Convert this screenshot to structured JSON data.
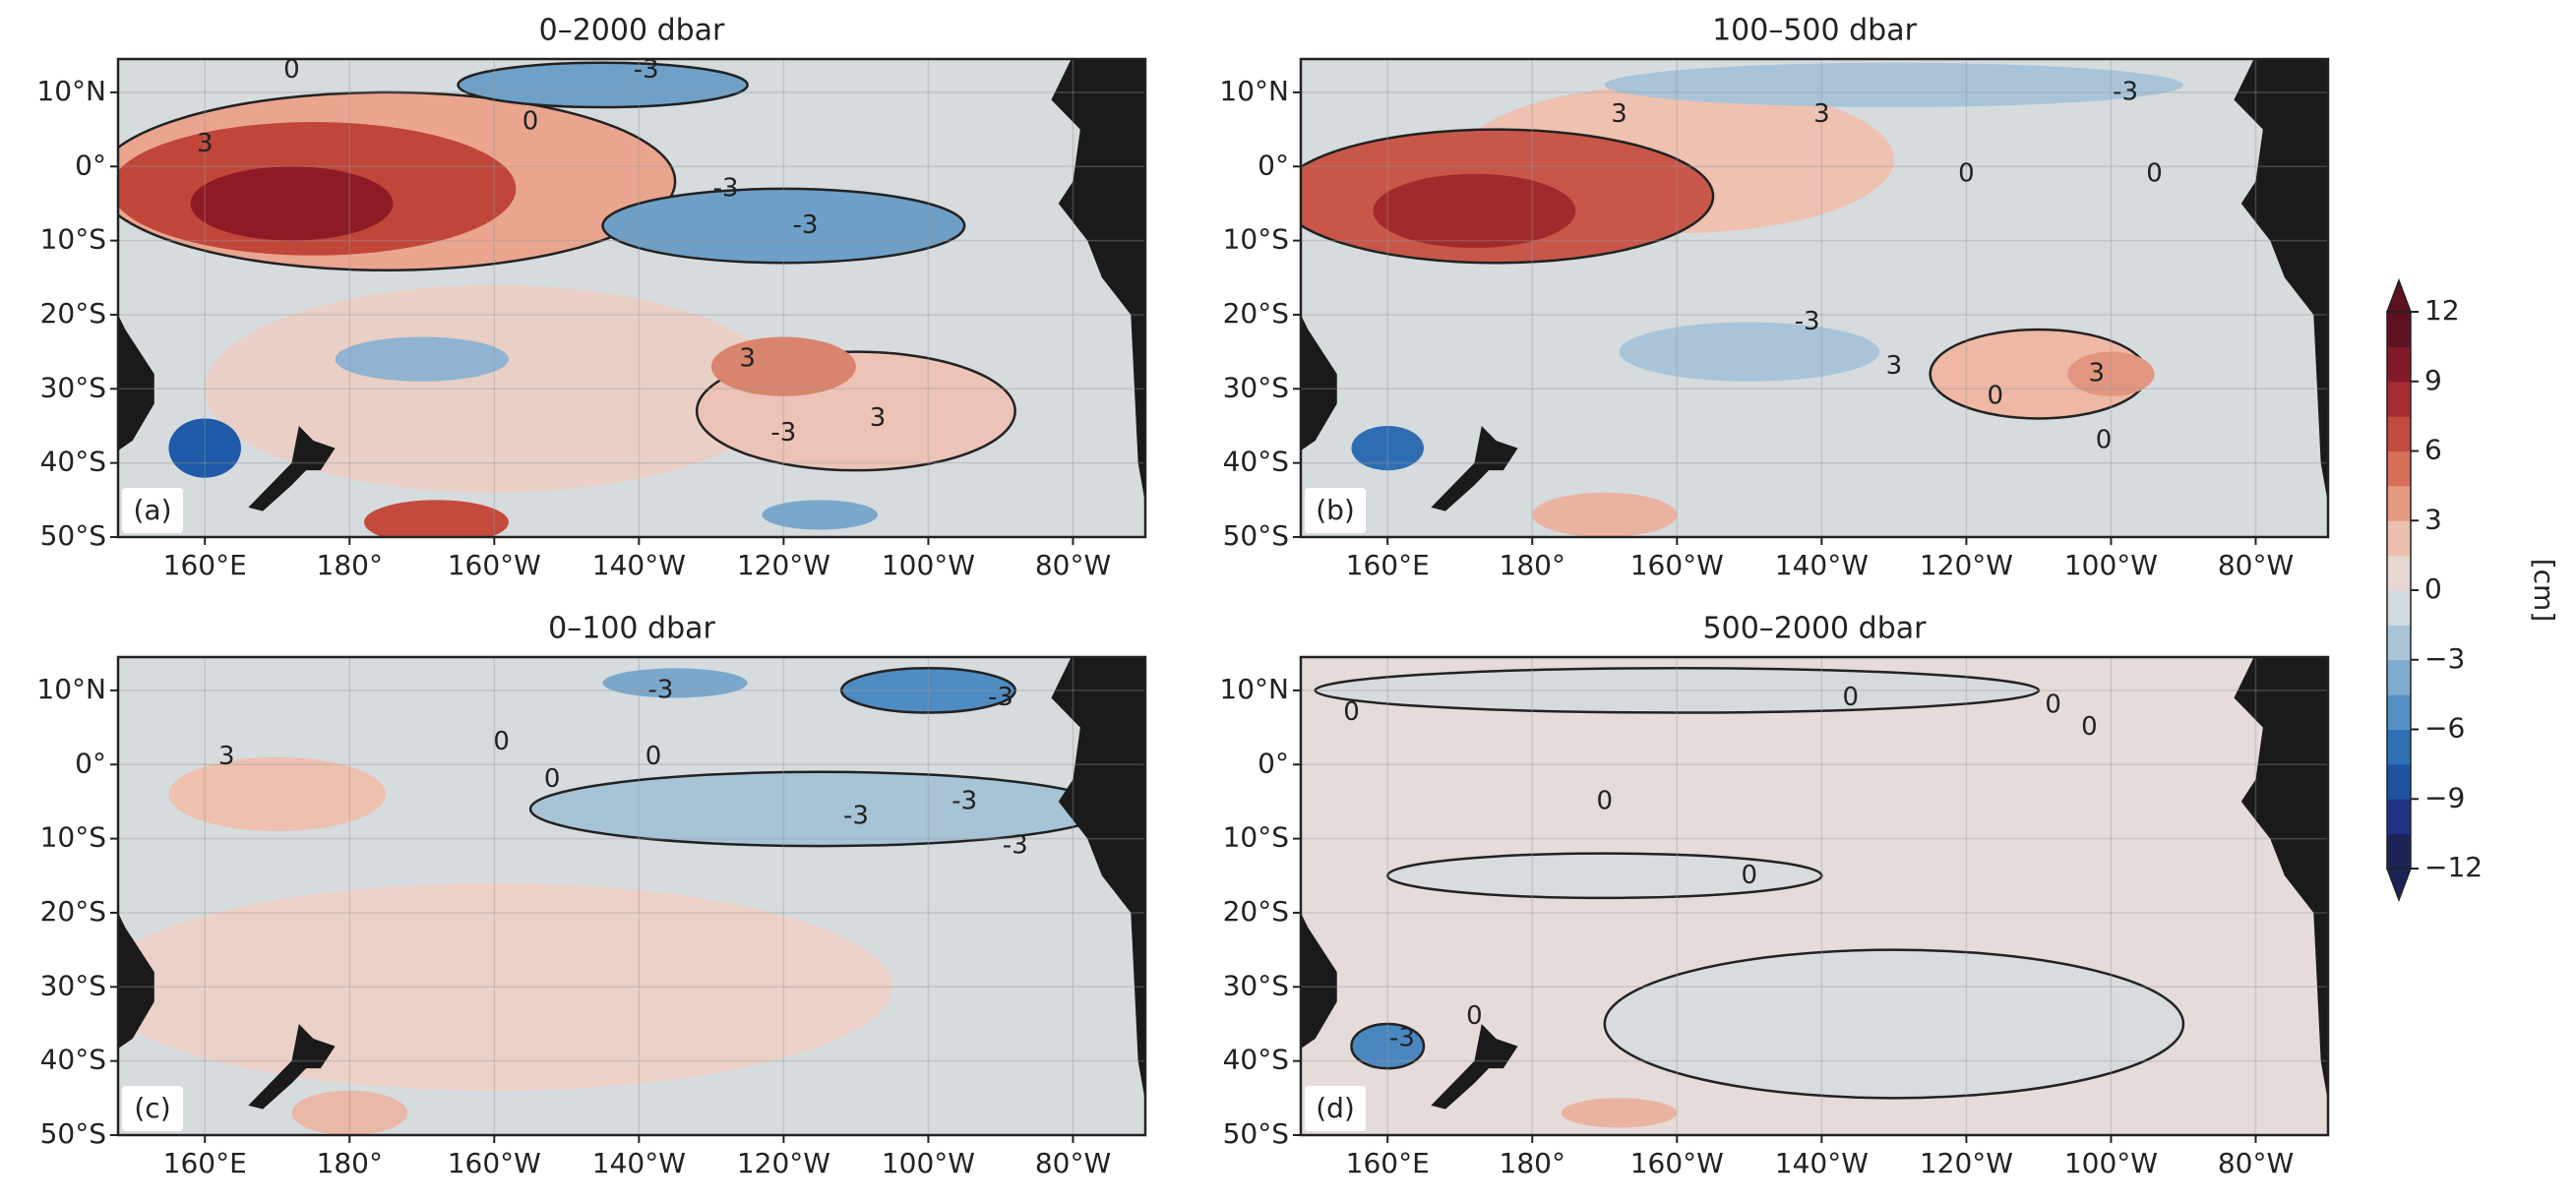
{
  "chart_data": [
    {
      "type": "map",
      "title": "0–2000 dbar",
      "panel_label": "(a)",
      "xlim": [
        148,
        290
      ],
      "ylim": [
        -50,
        14.5
      ],
      "xticks": [
        {
          "value": 160,
          "label": "160°E"
        },
        {
          "value": 180,
          "label": "180°"
        },
        {
          "value": 200,
          "label": "160°W"
        },
        {
          "value": 220,
          "label": "140°W"
        },
        {
          "value": 240,
          "label": "120°W"
        },
        {
          "value": 260,
          "label": "100°W"
        },
        {
          "value": 280,
          "label": "80°W"
        }
      ],
      "yticks": [
        {
          "value": 10,
          "label": "10°N"
        },
        {
          "value": 0,
          "label": "0°"
        },
        {
          "value": -10,
          "label": "10°S"
        },
        {
          "value": -20,
          "label": "20°S"
        },
        {
          "value": -30,
          "label": "30°S"
        },
        {
          "value": -40,
          "label": "40°S"
        },
        {
          "value": -50,
          "label": "50°S"
        }
      ],
      "contour_labels": [
        "0",
        "-3",
        "3",
        "0",
        "-3",
        "-3",
        "3",
        "-3",
        "3"
      ]
    },
    {
      "type": "map",
      "title": "100–500 dbar",
      "panel_label": "(b)",
      "xlim": [
        148,
        290
      ],
      "ylim": [
        -50,
        14.5
      ],
      "xticks": [
        {
          "value": 160,
          "label": "160°E"
        },
        {
          "value": 180,
          "label": "180°"
        },
        {
          "value": 200,
          "label": "160°W"
        },
        {
          "value": 220,
          "label": "140°W"
        },
        {
          "value": 240,
          "label": "120°W"
        },
        {
          "value": 260,
          "label": "100°W"
        },
        {
          "value": 280,
          "label": "80°W"
        }
      ],
      "yticks": [
        {
          "value": 10,
          "label": "10°N"
        },
        {
          "value": 0,
          "label": "0°"
        },
        {
          "value": -10,
          "label": "10°S"
        },
        {
          "value": -20,
          "label": "20°S"
        },
        {
          "value": -30,
          "label": "30°S"
        },
        {
          "value": -40,
          "label": "40°S"
        },
        {
          "value": -50,
          "label": "50°S"
        }
      ],
      "contour_labels": [
        "3",
        "3",
        "-3",
        "0",
        "0",
        "-3",
        "3",
        "0",
        "3",
        "0"
      ]
    },
    {
      "type": "map",
      "title": "0–100 dbar",
      "panel_label": "(c)",
      "xlim": [
        148,
        290
      ],
      "ylim": [
        -50,
        14.5
      ],
      "xticks": [
        {
          "value": 160,
          "label": "160°E"
        },
        {
          "value": 180,
          "label": "180°"
        },
        {
          "value": 200,
          "label": "160°W"
        },
        {
          "value": 220,
          "label": "140°W"
        },
        {
          "value": 240,
          "label": "120°W"
        },
        {
          "value": 260,
          "label": "100°W"
        },
        {
          "value": 280,
          "label": "80°W"
        }
      ],
      "yticks": [
        {
          "value": 10,
          "label": "10°N"
        },
        {
          "value": 0,
          "label": "0°"
        },
        {
          "value": -10,
          "label": "10°S"
        },
        {
          "value": -20,
          "label": "20°S"
        },
        {
          "value": -30,
          "label": "30°S"
        },
        {
          "value": -40,
          "label": "40°S"
        },
        {
          "value": -50,
          "label": "50°S"
        }
      ],
      "contour_labels": [
        "-3",
        "0",
        "-3",
        "3",
        "0",
        "0",
        "-3",
        "-3",
        "-3"
      ]
    },
    {
      "type": "map",
      "title": "500–2000 dbar",
      "panel_label": "(d)",
      "xlim": [
        148,
        290
      ],
      "ylim": [
        -50,
        14.5
      ],
      "xticks": [
        {
          "value": 160,
          "label": "160°E"
        },
        {
          "value": 180,
          "label": "180°"
        },
        {
          "value": 200,
          "label": "160°W"
        },
        {
          "value": 220,
          "label": "140°W"
        },
        {
          "value": 240,
          "label": "120°W"
        },
        {
          "value": 260,
          "label": "100°W"
        },
        {
          "value": 280,
          "label": "80°W"
        }
      ],
      "yticks": [
        {
          "value": 10,
          "label": "10°N"
        },
        {
          "value": 0,
          "label": "0°"
        },
        {
          "value": -10,
          "label": "10°S"
        },
        {
          "value": -20,
          "label": "20°S"
        },
        {
          "value": -30,
          "label": "30°S"
        },
        {
          "value": -40,
          "label": "40°S"
        },
        {
          "value": -50,
          "label": "50°S"
        }
      ],
      "contour_labels": [
        "0",
        "0",
        "0",
        "0",
        "0",
        "0",
        "0",
        "-3"
      ]
    }
  ],
  "colorbar": {
    "label": "[cm]",
    "lim": [
      -12,
      12
    ],
    "ticks": [
      {
        "value": -12,
        "label": "−12"
      },
      {
        "value": -9,
        "label": "−9"
      },
      {
        "value": -6,
        "label": "−6"
      },
      {
        "value": -3,
        "label": "−3"
      },
      0,
      3,
      6,
      9,
      12
    ],
    "colors": [
      "#1c2356",
      "#1f3186",
      "#1f52a3",
      "#2f6fb5",
      "#5590c4",
      "#80abcf",
      "#aac4d7",
      "#d1dadf",
      "#e6d7d2",
      "#ecbfae",
      "#e59a82",
      "#d6705a",
      "#c24a3e",
      "#a52a32",
      "#831a28",
      "#5e1120"
    ]
  }
}
